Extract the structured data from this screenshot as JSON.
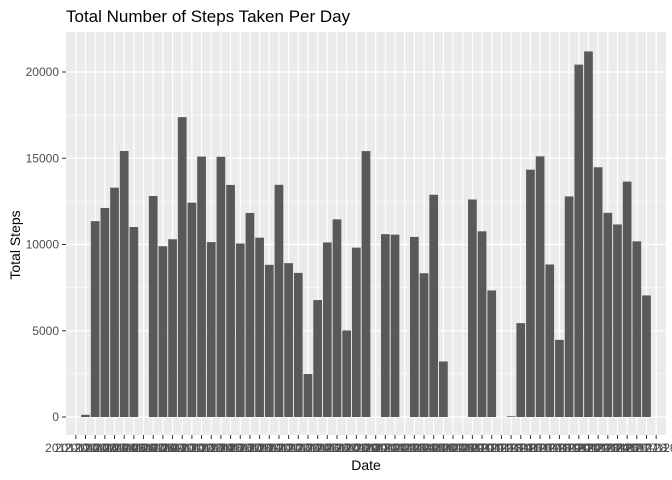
{
  "chart_data": {
    "type": "bar",
    "title": "Total Number of Steps Taken Per Day",
    "xlabel": "Date",
    "ylabel": "Total Steps",
    "ylim": [
      0,
      22000
    ],
    "yticks": [
      0,
      5000,
      10000,
      15000,
      20000
    ],
    "grid": true,
    "categories": [
      "2012-10-01",
      "2012-10-02",
      "2012-10-03",
      "2012-10-04",
      "2012-10-05",
      "2012-10-06",
      "2012-10-07",
      "2012-10-08",
      "2012-10-09",
      "2012-10-10",
      "2012-10-11",
      "2012-10-12",
      "2012-10-13",
      "2012-10-14",
      "2012-10-15",
      "2012-10-16",
      "2012-10-17",
      "2012-10-18",
      "2012-10-19",
      "2012-10-20",
      "2012-10-21",
      "2012-10-22",
      "2012-10-23",
      "2012-10-24",
      "2012-10-25",
      "2012-10-26",
      "2012-10-27",
      "2012-10-28",
      "2012-10-29",
      "2012-10-30",
      "2012-10-31",
      "2012-11-01",
      "2012-11-02",
      "2012-11-03",
      "2012-11-04",
      "2012-11-05",
      "2012-11-06",
      "2012-11-07",
      "2012-11-08",
      "2012-11-09",
      "2012-11-10",
      "2012-11-11",
      "2012-11-12",
      "2012-11-13",
      "2012-11-14",
      "2012-11-15",
      "2012-11-16",
      "2012-11-17",
      "2012-11-18",
      "2012-11-19",
      "2012-11-20",
      "2012-11-21",
      "2012-11-22",
      "2012-11-23",
      "2012-11-24",
      "2012-11-25",
      "2012-11-26",
      "2012-11-27",
      "2012-11-28",
      "2012-11-29",
      "2012-11-30"
    ],
    "values": [
      0,
      126,
      11352,
      12116,
      13294,
      15420,
      11015,
      0,
      12811,
      9900,
      10304,
      17382,
      12426,
      15098,
      10139,
      15084,
      13452,
      10056,
      11829,
      10395,
      8821,
      13460,
      8918,
      8355,
      2492,
      6778,
      10119,
      11458,
      5018,
      9819,
      15414,
      0,
      10600,
      10571,
      0,
      10439,
      8334,
      12883,
      3219,
      0,
      0,
      12608,
      10765,
      7336,
      0,
      41,
      5441,
      14339,
      15110,
      8841,
      4472,
      12787,
      20427,
      21194,
      14478,
      11834,
      11162,
      13646,
      10183,
      7047,
      0
    ],
    "bar_color": "#595959",
    "panel_color": "#ebebeb",
    "grid_color": "#ffffff"
  }
}
